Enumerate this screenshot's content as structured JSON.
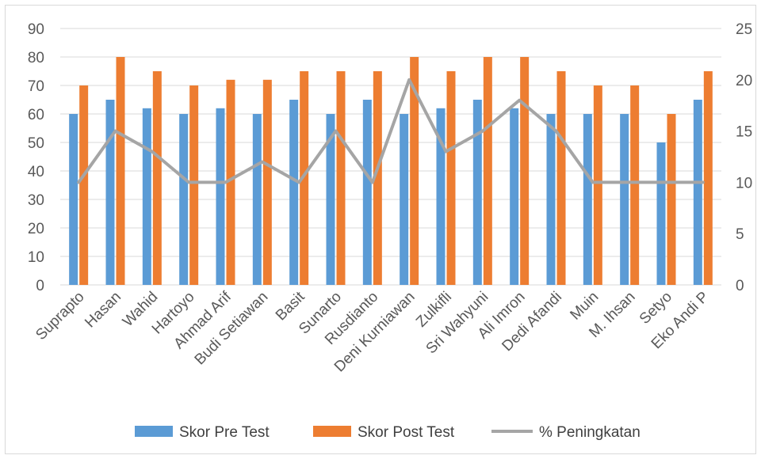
{
  "chart_data": {
    "type": "bar",
    "categories": [
      "Suprapto",
      "Hasan",
      "Wahid",
      "Hartoyo",
      "Ahmad Arif",
      "Budi Setiawan",
      "Basit",
      "Sunarto",
      "Rusdianto",
      "Deni Kurniawan",
      "Zulkifli",
      "Sri Wahyuni",
      "Ali Imron",
      "Dedi Afandi",
      "Muin",
      "M. Ihsan",
      "Setyo",
      "Eko Andi P"
    ],
    "series": [
      {
        "name": "Skor Pre Test",
        "type": "bar",
        "axis": "left",
        "color": "#5b9bd5",
        "values": [
          60,
          65,
          62,
          60,
          62,
          60,
          65,
          60,
          65,
          60,
          62,
          65,
          62,
          60,
          60,
          60,
          50,
          65
        ]
      },
      {
        "name": "Skor Post Test",
        "type": "bar",
        "axis": "left",
        "color": "#ed7d31",
        "values": [
          70,
          80,
          75,
          70,
          72,
          72,
          75,
          75,
          75,
          80,
          75,
          80,
          80,
          75,
          70,
          70,
          60,
          75
        ]
      },
      {
        "name": "% Peningkatan",
        "type": "line",
        "axis": "right",
        "color": "#a5a5a5",
        "values": [
          10,
          15,
          13,
          10,
          10,
          12,
          10,
          15,
          10,
          20,
          13,
          15,
          18,
          15,
          10,
          10,
          10,
          10
        ]
      }
    ],
    "y_left": {
      "min": 0,
      "max": 90,
      "step": 10,
      "ticks": [
        "0",
        "10",
        "20",
        "30",
        "40",
        "50",
        "60",
        "70",
        "80",
        "90"
      ]
    },
    "y_right": {
      "min": 0,
      "max": 25,
      "step": 5,
      "ticks": [
        "0",
        "5",
        "10",
        "15",
        "20",
        "25"
      ]
    },
    "grid": true,
    "legend_position": "bottom"
  }
}
